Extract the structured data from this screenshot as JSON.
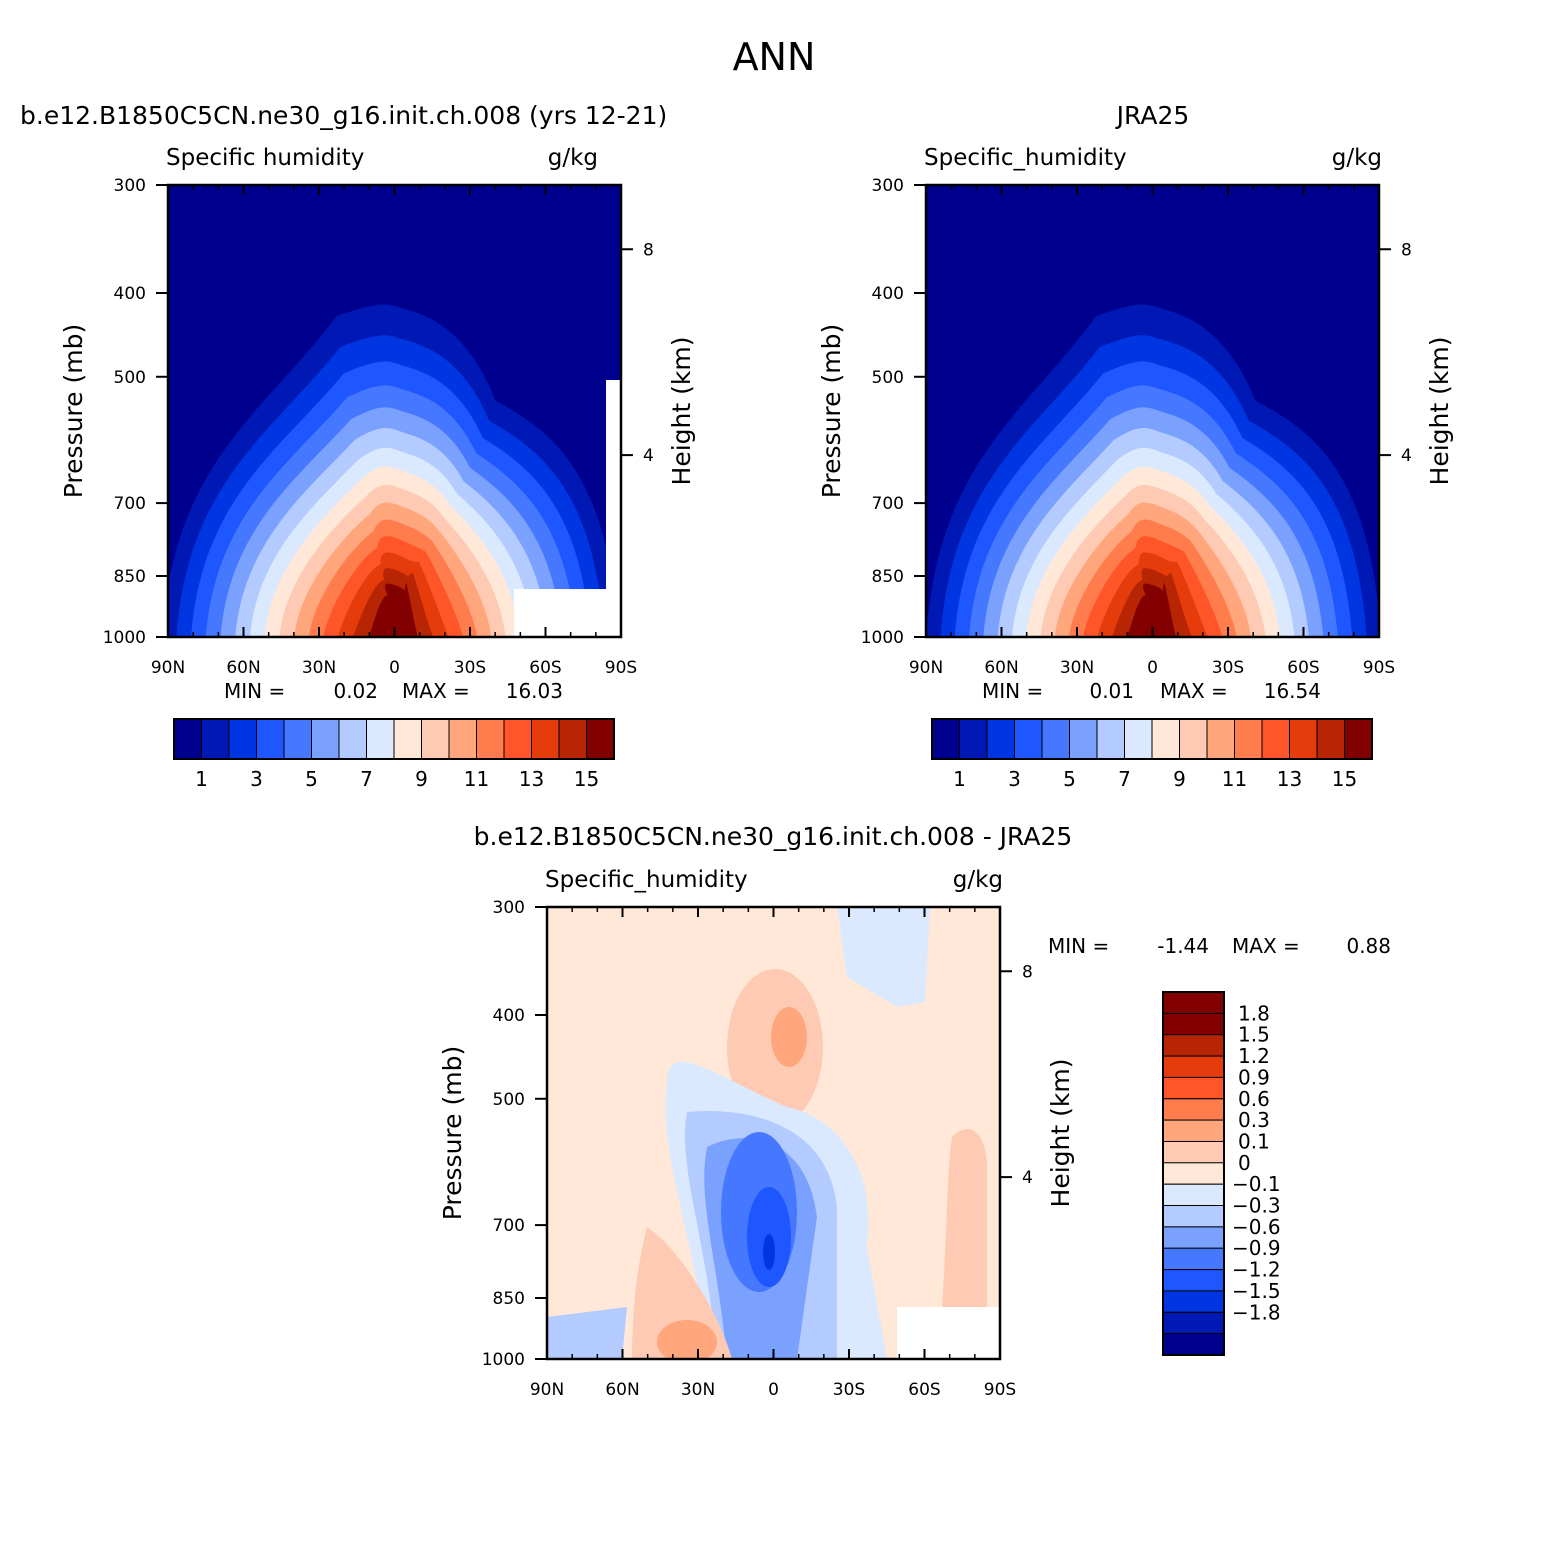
{
  "figure": {
    "title": "ANN",
    "model_title": "b.e12.B1850C5CN.ne30_g16.init.ch.008 (yrs 12-21)",
    "obs_title": "JRA25",
    "diff_title": "b.e12.B1850C5CN.ne30_g16.init.ch.008 - JRA25"
  },
  "chart_data": [
    {
      "id": "model",
      "type": "heatmap",
      "variable": "Specific humidity",
      "units": "g/kg",
      "xlabel": "",
      "ylabel": "Pressure (mb)",
      "y2label": "Height (km)",
      "x_ticks": [
        "90N",
        "60N",
        "30N",
        "0",
        "30S",
        "60S",
        "90S"
      ],
      "x_range": [
        90,
        -90
      ],
      "y_ticks": [
        300,
        400,
        500,
        700,
        850,
        1000
      ],
      "y_range": [
        300,
        1000
      ],
      "y_scale": "log",
      "y2_ticks": [
        8,
        4
      ],
      "min_label": "MIN =",
      "min": "0.02",
      "max_label": "MAX =",
      "max": "16.03",
      "colorbar_labels": [
        "1",
        "3",
        "5",
        "7",
        "9",
        "11",
        "13",
        "15"
      ],
      "colorbar_colors": [
        "#00008f",
        "#0019b5",
        "#0036e2",
        "#1e56ff",
        "#4678ff",
        "#7ba1ff",
        "#b3cbff",
        "#dbe9ff",
        "#ffe8d8",
        "#ffcab3",
        "#ffa67c",
        "#ff7d4d",
        "#ff5528",
        "#e63c0c",
        "#b82505",
        "#830000"
      ],
      "colorbar_location": "bottom",
      "surface_mask": true
    },
    {
      "id": "obs",
      "type": "heatmap",
      "variable": "Specific_humidity",
      "units": "g/kg",
      "xlabel": "",
      "ylabel": "Pressure (mb)",
      "y2label": "Height (km)",
      "x_ticks": [
        "90N",
        "60N",
        "30N",
        "0",
        "30S",
        "60S",
        "90S"
      ],
      "x_range": [
        90,
        -90
      ],
      "y_ticks": [
        300,
        400,
        500,
        700,
        850,
        1000
      ],
      "y_range": [
        300,
        1000
      ],
      "y_scale": "log",
      "y2_ticks": [
        8,
        4
      ],
      "min_label": "MIN =",
      "min": "0.01",
      "max_label": "MAX =",
      "max": "16.54",
      "colorbar_labels": [
        "1",
        "3",
        "5",
        "7",
        "9",
        "11",
        "13",
        "15"
      ],
      "colorbar_colors": [
        "#00008f",
        "#0019b5",
        "#0036e2",
        "#1e56ff",
        "#4678ff",
        "#7ba1ff",
        "#b3cbff",
        "#dbe9ff",
        "#ffe8d8",
        "#ffcab3",
        "#ffa67c",
        "#ff7d4d",
        "#ff5528",
        "#e63c0c",
        "#b82505",
        "#830000"
      ],
      "colorbar_location": "bottom",
      "surface_mask": false
    },
    {
      "id": "diff",
      "type": "heatmap",
      "variable": "Specific_humidity",
      "units": "g/kg",
      "xlabel": "",
      "ylabel": "Pressure (mb)",
      "y2label": "Height (km)",
      "x_ticks": [
        "90N",
        "60N",
        "30N",
        "0",
        "30S",
        "60S",
        "90S"
      ],
      "x_range": [
        90,
        -90
      ],
      "y_ticks": [
        300,
        400,
        500,
        700,
        850,
        1000
      ],
      "y_range": [
        300,
        1000
      ],
      "y_scale": "log",
      "y2_ticks": [
        8,
        4
      ],
      "min_label": "MIN =",
      "min": "-1.44",
      "max_label": "MAX =",
      "max": "0.88",
      "colorbar_labels": [
        "1.8",
        "1.5",
        "1.2",
        "0.9",
        "0.6",
        "0.3",
        "0.1",
        "0",
        "-0.1",
        "-0.3",
        "-0.6",
        "-0.9",
        "-1.2",
        "-1.5",
        "-1.8"
      ],
      "colorbar_colors": [
        "#830000",
        "#b82505",
        "#e63c0c",
        "#ff5528",
        "#ff7d4d",
        "#ffa67c",
        "#ffcab3",
        "#ffe8d8",
        "#dbe9ff",
        "#b3cbff",
        "#7ba1ff",
        "#4678ff",
        "#1e56ff",
        "#0036e2",
        "#0019b5",
        "#00008f"
      ],
      "colorbar_location": "right",
      "surface_mask": true
    }
  ]
}
